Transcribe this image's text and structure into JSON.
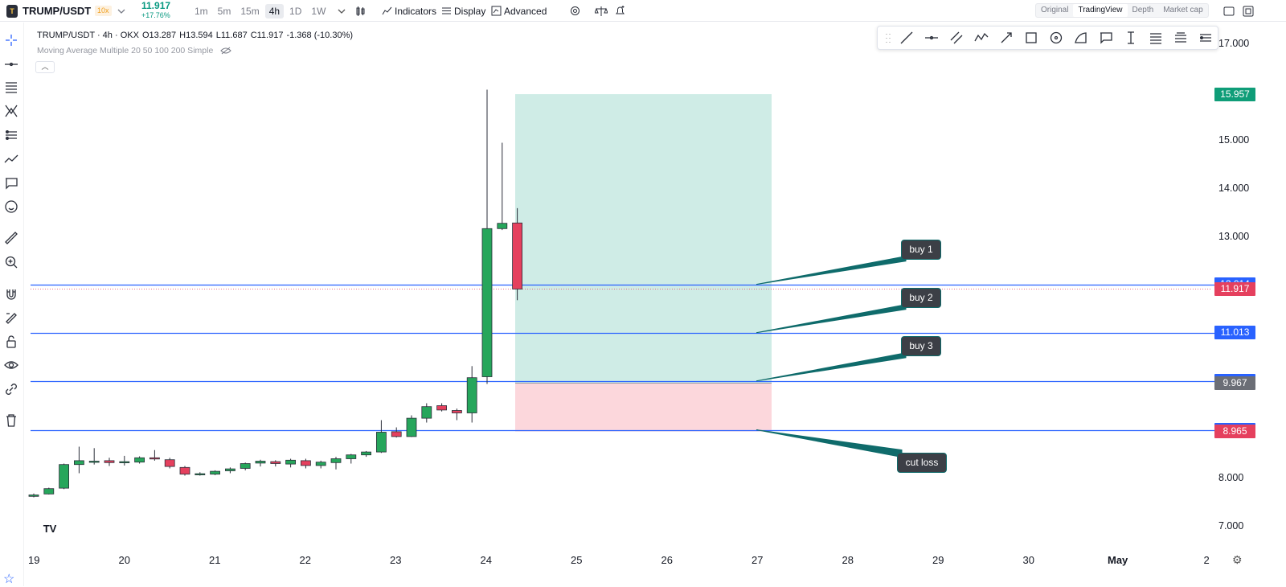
{
  "header": {
    "pair": "TRUMP/USDT",
    "leverage": "10x",
    "last_price": "11.917",
    "change_pct": "+17.76%",
    "timeframes": [
      "1m",
      "5m",
      "15m",
      "4h",
      "1D",
      "1W"
    ],
    "active_timeframe": "4h",
    "indicators_label": "Indicators",
    "display_label": "Display",
    "advanced_label": "Advanced",
    "view_modes": [
      "Original",
      "TradingView",
      "Depth",
      "Market cap"
    ],
    "active_view": "TradingView"
  },
  "legend": {
    "symbol": "TRUMP/USDT · 4h · OKX",
    "open": "O13.287",
    "high": "H13.594",
    "low": "L11.687",
    "close": "C11.917",
    "change": "-1.368 (-10.30%)",
    "indicator": "Moving Average Multiple 20 50 100 200 Simple"
  },
  "colors": {
    "up": "#26a65b",
    "down": "#e5405e",
    "hline": "#2962ff",
    "target_zone": "#bfe6dd",
    "stop_zone": "#fbd0d6",
    "callout_line": "#0f6b6b"
  },
  "chart_data": {
    "type": "candlestick",
    "y_axis_ticks": [
      "17.000",
      "15.000",
      "14.000",
      "13.000",
      "8.000",
      "7.000"
    ],
    "x_axis_ticks": [
      "19",
      "20",
      "21",
      "22",
      "23",
      "24",
      "25",
      "26",
      "27",
      "28",
      "29",
      "30",
      "May",
      "2"
    ],
    "ylim": [
      6.7,
      17.3
    ],
    "candles": [
      {
        "o": 7.62,
        "h": 7.68,
        "l": 7.6,
        "c": 7.65
      },
      {
        "o": 7.67,
        "h": 7.8,
        "l": 7.66,
        "c": 7.78
      },
      {
        "o": 7.79,
        "h": 8.3,
        "l": 7.77,
        "c": 8.28
      },
      {
        "o": 8.28,
        "h": 8.65,
        "l": 8.1,
        "c": 8.36
      },
      {
        "o": 8.35,
        "h": 8.62,
        "l": 8.28,
        "c": 8.35
      },
      {
        "o": 8.36,
        "h": 8.42,
        "l": 8.25,
        "c": 8.32
      },
      {
        "o": 8.34,
        "h": 8.46,
        "l": 8.26,
        "c": 8.34
      },
      {
        "o": 8.33,
        "h": 8.45,
        "l": 8.3,
        "c": 8.42
      },
      {
        "o": 8.42,
        "h": 8.58,
        "l": 8.36,
        "c": 8.4
      },
      {
        "o": 8.38,
        "h": 8.42,
        "l": 8.2,
        "c": 8.24
      },
      {
        "o": 8.22,
        "h": 8.25,
        "l": 8.05,
        "c": 8.08
      },
      {
        "o": 8.08,
        "h": 8.12,
        "l": 8.05,
        "c": 8.09
      },
      {
        "o": 8.08,
        "h": 8.16,
        "l": 8.06,
        "c": 8.14
      },
      {
        "o": 8.15,
        "h": 8.22,
        "l": 8.1,
        "c": 8.19
      },
      {
        "o": 8.2,
        "h": 8.32,
        "l": 8.16,
        "c": 8.3
      },
      {
        "o": 8.31,
        "h": 8.38,
        "l": 8.24,
        "c": 8.35
      },
      {
        "o": 8.34,
        "h": 8.37,
        "l": 8.24,
        "c": 8.3
      },
      {
        "o": 8.29,
        "h": 8.4,
        "l": 8.22,
        "c": 8.37
      },
      {
        "o": 8.36,
        "h": 8.4,
        "l": 8.2,
        "c": 8.26
      },
      {
        "o": 8.26,
        "h": 8.36,
        "l": 8.2,
        "c": 8.33
      },
      {
        "o": 8.32,
        "h": 8.44,
        "l": 8.18,
        "c": 8.4
      },
      {
        "o": 8.4,
        "h": 8.5,
        "l": 8.3,
        "c": 8.48
      },
      {
        "o": 8.48,
        "h": 8.56,
        "l": 8.44,
        "c": 8.54
      },
      {
        "o": 8.54,
        "h": 9.2,
        "l": 8.52,
        "c": 8.95
      },
      {
        "o": 8.96,
        "h": 9.05,
        "l": 8.84,
        "c": 8.86
      },
      {
        "o": 8.86,
        "h": 9.3,
        "l": 8.85,
        "c": 9.24
      },
      {
        "o": 9.24,
        "h": 9.55,
        "l": 9.15,
        "c": 9.48
      },
      {
        "o": 9.5,
        "h": 9.55,
        "l": 9.38,
        "c": 9.41
      },
      {
        "o": 9.4,
        "h": 9.44,
        "l": 9.2,
        "c": 9.35
      },
      {
        "o": 9.35,
        "h": 10.32,
        "l": 9.15,
        "c": 10.08
      },
      {
        "o": 10.1,
        "h": 16.05,
        "l": 9.95,
        "c": 13.17
      },
      {
        "o": 13.17,
        "h": 14.95,
        "l": 13.14,
        "c": 13.28
      },
      {
        "o": 13.287,
        "h": 13.594,
        "l": 11.687,
        "c": 11.917
      }
    ],
    "horizontal_levels": [
      12.014,
      11.013,
      10.012,
      9.0
    ],
    "price_badges": [
      {
        "text": "15.957",
        "value": 15.957,
        "color": "#0f9d78"
      },
      {
        "text": "12.014",
        "value": 12.014,
        "color": "#2962ff"
      },
      {
        "text": "11.917",
        "value": 11.917,
        "color": "#e5405e"
      },
      {
        "text": "11.013",
        "value": 11.013,
        "color": "#2962ff"
      },
      {
        "text": "10.012",
        "value": 10.012,
        "color": "#2962ff"
      },
      {
        "text": "9.967",
        "value": 9.967,
        "color": "#6b6e76"
      },
      {
        "text": "9.000",
        "value": 9.0,
        "color": "#2962ff"
      },
      {
        "text": "8.965",
        "value": 8.965,
        "color": "#e5405e"
      }
    ],
    "position_tool": {
      "target": 15.957,
      "entry": 9.967,
      "stop": 8.965
    },
    "callouts": [
      {
        "label": "buy 1",
        "level": 12.014
      },
      {
        "label": "buy 2",
        "level": 11.013
      },
      {
        "label": "buy 3",
        "level": 10.012
      },
      {
        "label": "cut loss",
        "level": 9.0
      }
    ]
  }
}
